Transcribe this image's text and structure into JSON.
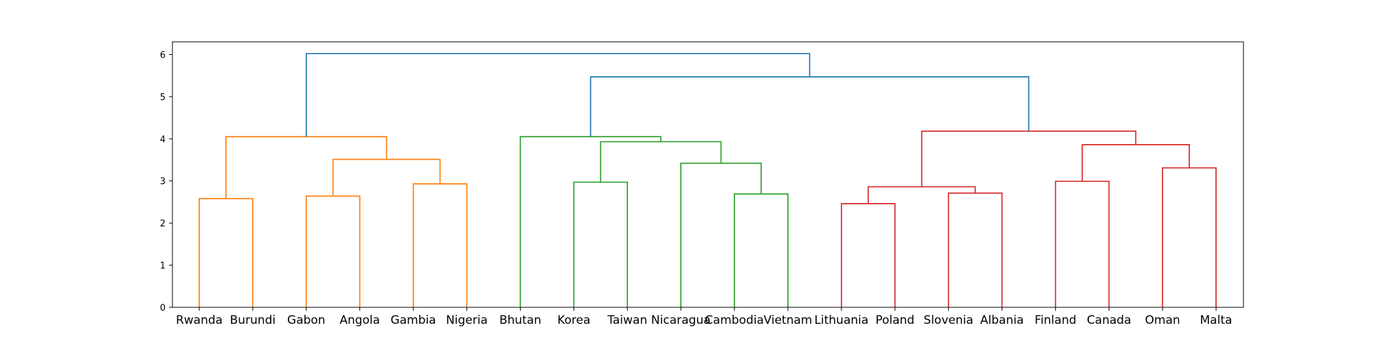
{
  "chart_data": {
    "type": "dendrogram",
    "title": "",
    "xlabel": "",
    "ylabel": "",
    "ylim": [
      0,
      6.3
    ],
    "yticks": [
      0,
      1,
      2,
      3,
      4,
      5,
      6
    ],
    "leaves": [
      "Rwanda",
      "Burundi",
      "Gabon",
      "Angola",
      "Gambia",
      "Nigeria",
      "Bhutan",
      "Korea",
      "Taiwan",
      "Nicaragua",
      "Cambodia",
      "Vietnam",
      "Lithuania",
      "Poland",
      "Slovenia",
      "Albania",
      "Finland",
      "Canada",
      "Oman",
      "Malta"
    ],
    "colors": {
      "C1": "#ff7f0e",
      "C2": "#2ca02c",
      "C3": "#d62728",
      "C0": "#1f77b4"
    },
    "merges": [
      {
        "left": "Rwanda",
        "right": "Burundi",
        "height": 2.58,
        "color": "C1"
      },
      {
        "left": "Gabon",
        "right": "Angola",
        "height": 2.64,
        "color": "C1"
      },
      {
        "left": "Gambia",
        "right": "Nigeria",
        "height": 2.93,
        "color": "C1"
      },
      {
        "left": 1,
        "right": 2,
        "height": 3.51,
        "color": "C1"
      },
      {
        "left": 0,
        "right": 3,
        "height": 4.05,
        "color": "C1"
      },
      {
        "left": "Korea",
        "right": "Taiwan",
        "height": 2.97,
        "color": "C2"
      },
      {
        "left": "Cambodia",
        "right": "Vietnam",
        "height": 2.69,
        "color": "C2"
      },
      {
        "left": "Nicaragua",
        "right": 6,
        "height": 3.42,
        "color": "C2"
      },
      {
        "left": 5,
        "right": 7,
        "height": 3.93,
        "color": "C2"
      },
      {
        "left": "Bhutan",
        "right": 8,
        "height": 4.05,
        "color": "C2"
      },
      {
        "left": "Lithuania",
        "right": "Poland",
        "height": 2.46,
        "color": "C3"
      },
      {
        "left": "Slovenia",
        "right": "Albania",
        "height": 2.71,
        "color": "C3"
      },
      {
        "left": 10,
        "right": 11,
        "height": 2.86,
        "color": "C3"
      },
      {
        "left": "Finland",
        "right": "Canada",
        "height": 2.99,
        "color": "C3"
      },
      {
        "left": "Oman",
        "right": "Malta",
        "height": 3.31,
        "color": "C3"
      },
      {
        "left": 13,
        "right": 14,
        "height": 3.86,
        "color": "C3"
      },
      {
        "left": 12,
        "right": 15,
        "height": 4.18,
        "color": "C3"
      },
      {
        "left": 9,
        "right": 16,
        "height": 5.47,
        "color": "C0"
      },
      {
        "left": 4,
        "right": 17,
        "height": 6.02,
        "color": "C0"
      }
    ]
  }
}
